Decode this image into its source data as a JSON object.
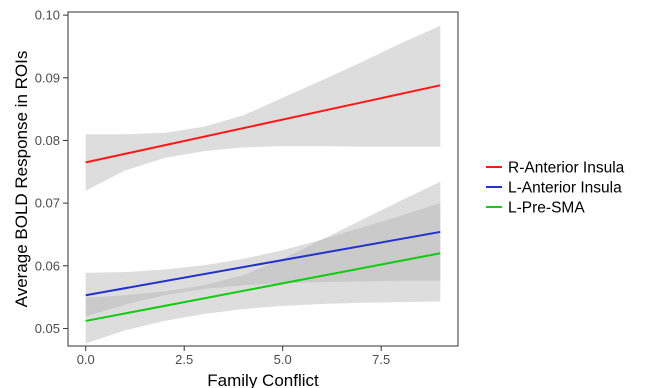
{
  "chart_data": {
    "type": "line",
    "title": "",
    "xlabel": "Family Conflict",
    "ylabel": "Average BOLD Response in ROIs",
    "xlim": [
      -0.45,
      9.45
    ],
    "ylim": [
      0.0472,
      0.1005
    ],
    "x_ticks": [
      0,
      2.5,
      5,
      7.5
    ],
    "x_tick_labels": [
      "0.0",
      "2.5",
      "5.0",
      "7.5"
    ],
    "y_ticks": [
      0.05,
      0.06,
      0.07,
      0.08,
      0.09,
      0.1
    ],
    "y_tick_labels": [
      "0.05",
      "0.06",
      "0.07",
      "0.08",
      "0.09",
      "0.10"
    ],
    "grid": false,
    "legend_position": "right",
    "confidence_band_color": "#b3b3b3",
    "series": [
      {
        "name": "R-Anterior Insula",
        "color": "#ff1a1a",
        "x": [
          0,
          9
        ],
        "y": [
          0.0765,
          0.0888
        ],
        "ci_x": [
          0,
          1,
          2,
          3,
          4,
          5,
          6,
          7,
          8,
          9
        ],
        "ci_lower": [
          0.072,
          0.0752,
          0.0772,
          0.0783,
          0.0789,
          0.0791,
          0.0791,
          0.079,
          0.079,
          0.079
        ],
        "ci_upper": [
          0.081,
          0.081,
          0.0812,
          0.0822,
          0.084,
          0.0868,
          0.0896,
          0.0925,
          0.0955,
          0.0983
        ]
      },
      {
        "name": "L-Anterior Insula",
        "color": "#2233cc",
        "x": [
          0,
          9
        ],
        "y": [
          0.0553,
          0.0654
        ],
        "ci_x": [
          0,
          1,
          2,
          3,
          4,
          5,
          6,
          7,
          8,
          9
        ],
        "ci_lower": [
          0.0519,
          0.0538,
          0.0553,
          0.0563,
          0.0569,
          0.0572,
          0.0574,
          0.0575,
          0.0576,
          0.0576
        ],
        "ci_upper": [
          0.0589,
          0.059,
          0.0594,
          0.0601,
          0.0611,
          0.0625,
          0.0642,
          0.0661,
          0.068,
          0.07
        ]
      },
      {
        "name": "L-Pre-SMA",
        "color": "#11cc11",
        "x": [
          0,
          9
        ],
        "y": [
          0.0512,
          0.062
        ],
        "ci_x": [
          0,
          1,
          2,
          3,
          4,
          5,
          6,
          7,
          8,
          9
        ],
        "ci_lower": [
          0.0476,
          0.0497,
          0.0512,
          0.0523,
          0.0531,
          0.0536,
          0.0539,
          0.0541,
          0.0542,
          0.0543
        ],
        "ci_upper": [
          0.0549,
          0.0553,
          0.0559,
          0.0569,
          0.0585,
          0.0611,
          0.0642,
          0.0673,
          0.0704,
          0.0734
        ]
      }
    ]
  }
}
